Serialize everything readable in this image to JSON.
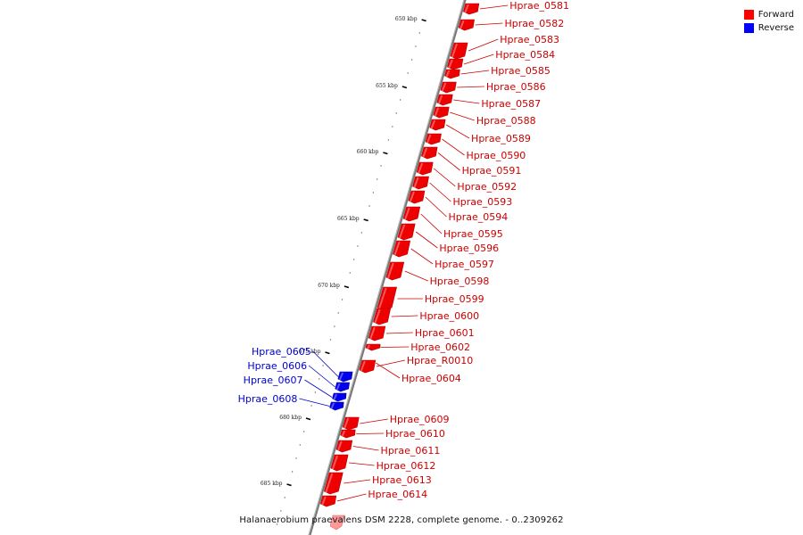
{
  "legend": [
    {
      "label": "Forward",
      "color": "#ff0000"
    },
    {
      "label": "Reverse",
      "color": "#0000ff"
    }
  ],
  "caption": "Halanaerobium praevalens DSM 2228, complete genome. - 0..2309262",
  "scale_labels": [
    "650 kbp",
    "655 kbp",
    "660 kbp",
    "665 kbp",
    "670 kbp",
    "675 kbp",
    "680 kbp",
    "685 kbp"
  ],
  "genes": [
    {
      "name": "Hprae_0581",
      "strand": "forward"
    },
    {
      "name": "Hprae_0582",
      "strand": "forward"
    },
    {
      "name": "Hprae_0583",
      "strand": "forward"
    },
    {
      "name": "Hprae_0584",
      "strand": "forward"
    },
    {
      "name": "Hprae_0585",
      "strand": "forward"
    },
    {
      "name": "Hprae_0586",
      "strand": "forward"
    },
    {
      "name": "Hprae_0587",
      "strand": "forward"
    },
    {
      "name": "Hprae_0588",
      "strand": "forward"
    },
    {
      "name": "Hprae_0589",
      "strand": "forward"
    },
    {
      "name": "Hprae_0590",
      "strand": "forward"
    },
    {
      "name": "Hprae_0591",
      "strand": "forward"
    },
    {
      "name": "Hprae_0592",
      "strand": "forward"
    },
    {
      "name": "Hprae_0593",
      "strand": "forward"
    },
    {
      "name": "Hprae_0594",
      "strand": "forward"
    },
    {
      "name": "Hprae_0595",
      "strand": "forward"
    },
    {
      "name": "Hprae_0596",
      "strand": "forward"
    },
    {
      "name": "Hprae_0597",
      "strand": "forward"
    },
    {
      "name": "Hprae_0598",
      "strand": "forward"
    },
    {
      "name": "Hprae_0599",
      "strand": "forward"
    },
    {
      "name": "Hprae_0600",
      "strand": "forward"
    },
    {
      "name": "Hprae_0601",
      "strand": "forward"
    },
    {
      "name": "Hprae_0602",
      "strand": "forward"
    },
    {
      "name": "Hprae_R0010",
      "strand": "forward"
    },
    {
      "name": "Hprae_0604",
      "strand": "forward"
    },
    {
      "name": "Hprae_0605",
      "strand": "reverse"
    },
    {
      "name": "Hprae_0606",
      "strand": "reverse"
    },
    {
      "name": "Hprae_0607",
      "strand": "reverse"
    },
    {
      "name": "Hprae_0608",
      "strand": "reverse"
    },
    {
      "name": "Hprae_0609",
      "strand": "forward"
    },
    {
      "name": "Hprae_0610",
      "strand": "forward"
    },
    {
      "name": "Hprae_0611",
      "strand": "forward"
    },
    {
      "name": "Hprae_0612",
      "strand": "forward"
    },
    {
      "name": "Hprae_0613",
      "strand": "forward"
    },
    {
      "name": "Hprae_0614",
      "strand": "forward"
    }
  ]
}
